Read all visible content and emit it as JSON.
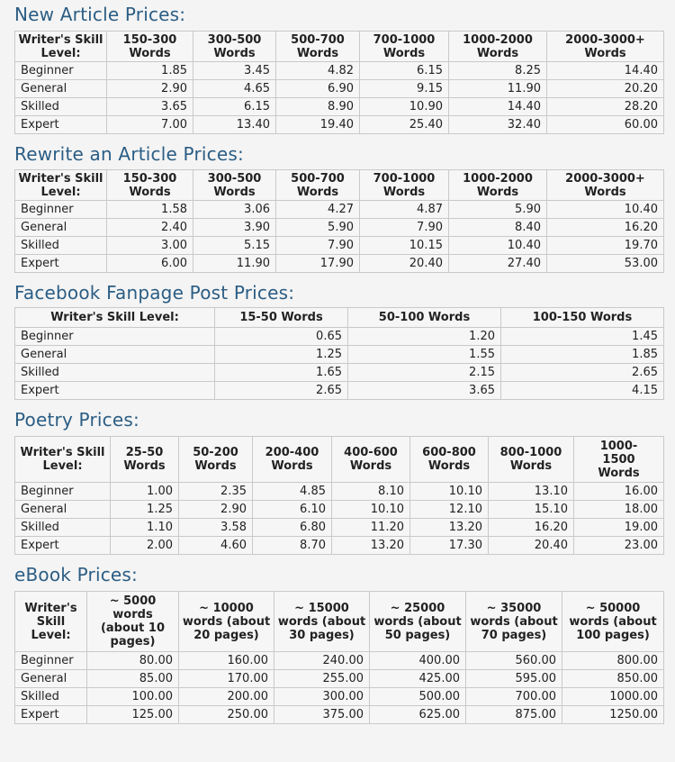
{
  "sections": [
    {
      "title": "New Article Prices:",
      "headers": [
        "Writer's Skill Level:",
        "150-300 Words",
        "300-500 Words",
        "500-700 Words",
        "700-1000 Words",
        "1000-2000 Words",
        "2000-3000+ Words"
      ],
      "rows": [
        [
          "Beginner",
          "1.85",
          "3.45",
          "4.82",
          "6.15",
          "8.25",
          "14.40"
        ],
        [
          "General",
          "2.90",
          "4.65",
          "6.90",
          "9.15",
          "11.90",
          "20.20"
        ],
        [
          "Skilled",
          "3.65",
          "6.15",
          "8.90",
          "10.90",
          "14.40",
          "28.20"
        ],
        [
          "Expert",
          "7.00",
          "13.40",
          "19.40",
          "25.40",
          "32.40",
          "60.00"
        ]
      ]
    },
    {
      "title": "Rewrite an Article Prices:",
      "headers": [
        "Writer's Skill Level:",
        "150-300 Words",
        "300-500 Words",
        "500-700 Words",
        "700-1000 Words",
        "1000-2000 Words",
        "2000-3000+ Words"
      ],
      "rows": [
        [
          "Beginner",
          "1.58",
          "3.06",
          "4.27",
          "4.87",
          "5.90",
          "10.40"
        ],
        [
          "General",
          "2.40",
          "3.90",
          "5.90",
          "7.90",
          "8.40",
          "16.20"
        ],
        [
          "Skilled",
          "3.00",
          "5.15",
          "7.90",
          "10.15",
          "10.40",
          "19.70"
        ],
        [
          "Expert",
          "6.00",
          "11.90",
          "17.90",
          "20.40",
          "27.40",
          "53.00"
        ]
      ]
    },
    {
      "title": "Facebook Fanpage Post Prices:",
      "headers": [
        "Writer's Skill Level:",
        "15-50 Words",
        "50-100 Words",
        "100-150 Words"
      ],
      "rows": [
        [
          "Beginner",
          "0.65",
          "1.20",
          "1.45"
        ],
        [
          "General",
          "1.25",
          "1.55",
          "1.85"
        ],
        [
          "Skilled",
          "1.65",
          "2.15",
          "2.65"
        ],
        [
          "Expert",
          "2.65",
          "3.65",
          "4.15"
        ]
      ]
    },
    {
      "title": "Poetry Prices:",
      "headers": [
        "Writer's Skill Level:",
        "25-50 Words",
        "50-200 Words",
        "200-400 Words",
        "400-600 Words",
        "600-800 Words",
        "800-1000 Words",
        "1000-1500 Words"
      ],
      "rows": [
        [
          "Beginner",
          "1.00",
          "2.35",
          "4.85",
          "8.10",
          "10.10",
          "13.10",
          "16.00"
        ],
        [
          "General",
          "1.25",
          "2.90",
          "6.10",
          "10.10",
          "12.10",
          "15.10",
          "18.00"
        ],
        [
          "Skilled",
          "1.10",
          "3.58",
          "6.80",
          "11.20",
          "13.20",
          "16.20",
          "19.00"
        ],
        [
          "Expert",
          "2.00",
          "4.60",
          "8.70",
          "13.20",
          "17.30",
          "20.40",
          "23.00"
        ]
      ]
    },
    {
      "title": "eBook Prices:",
      "headers": [
        "Writer's Skill Level:",
        "~ 5000 words (about 10 pages)",
        "~ 10000 words (about 20 pages)",
        "~ 15000 words (about 30 pages)",
        "~ 25000 words (about 50 pages)",
        "~ 35000 words (about 70 pages)",
        "~ 50000 words (about 100 pages)"
      ],
      "rows": [
        [
          "Beginner",
          "80.00",
          "160.00",
          "240.00",
          "400.00",
          "560.00",
          "800.00"
        ],
        [
          "General",
          "85.00",
          "170.00",
          "255.00",
          "425.00",
          "595.00",
          "850.00"
        ],
        [
          "Skilled",
          "100.00",
          "200.00",
          "300.00",
          "500.00",
          "700.00",
          "1000.00"
        ],
        [
          "Expert",
          "125.00",
          "250.00",
          "375.00",
          "625.00",
          "875.00",
          "1250.00"
        ]
      ]
    }
  ]
}
